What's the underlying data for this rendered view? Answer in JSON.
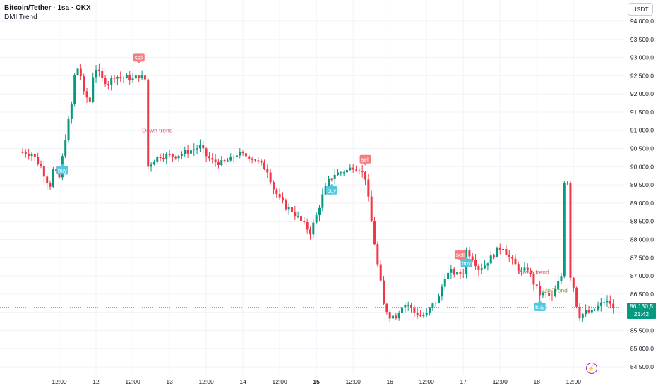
{
  "header": {
    "title": "Bitcoin/Tether · 1sa · OKX",
    "indicator": "DMI Trend"
  },
  "price_axis": {
    "currency": "USDT",
    "current_price": "86.130,5",
    "countdown": "21:42"
  },
  "colors": {
    "up": "#089981",
    "down": "#f23645",
    "buy_label": "#4ec8e0",
    "sell_label": "#f77c80",
    "down_trend_text": "#e8556a",
    "up_trend_text": "#7ba43a",
    "grid": "#f0f3fa"
  },
  "icons": {
    "replay": "lightning-icon"
  },
  "chart_data": {
    "type": "candlestick",
    "title": "Bitcoin/Tether · 1sa · OKX",
    "xlabel": "",
    "ylabel": "",
    "ylim": [
      84250,
      94400
    ],
    "y_ticks": [
      84500,
      85000,
      85500,
      86000,
      86500,
      87000,
      87500,
      88000,
      88500,
      89000,
      89500,
      90000,
      90500,
      91000,
      91500,
      92000,
      92500,
      93000,
      93500,
      94000
    ],
    "y_tick_labels": [
      "84.500,0",
      "85.000,0",
      "85.500,0",
      "86.000,0",
      "86.500,0",
      "87.000,0",
      "87.500,0",
      "88.000,0",
      "88.500,0",
      "89.000,0",
      "89.500,0",
      "90.000,0",
      "90.500,0",
      "91.000,0",
      "91.500,0",
      "92.000,0",
      "92.500,0",
      "93.000,0",
      "93.500,0",
      "94.000,0"
    ],
    "x_ticks": [
      {
        "label": "12:00",
        "hour": 12,
        "bold": false
      },
      {
        "label": "12",
        "hour": 24,
        "bold": false
      },
      {
        "label": "12:00",
        "hour": 36,
        "bold": false
      },
      {
        "label": "13",
        "hour": 48,
        "bold": false
      },
      {
        "label": "12:00",
        "hour": 60,
        "bold": false
      },
      {
        "label": "14",
        "hour": 72,
        "bold": false
      },
      {
        "label": "12:00",
        "hour": 84,
        "bold": false
      },
      {
        "label": "15",
        "hour": 96,
        "bold": true
      },
      {
        "label": "12:00",
        "hour": 108,
        "bold": false
      },
      {
        "label": "16",
        "hour": 120,
        "bold": false
      },
      {
        "label": "12:00",
        "hour": 132,
        "bold": false
      },
      {
        "label": "17",
        "hour": 144,
        "bold": false
      },
      {
        "label": "12:00",
        "hour": 156,
        "bold": false
      },
      {
        "label": "18",
        "hour": 168,
        "bold": false
      },
      {
        "label": "12:00",
        "hour": 180,
        "bold": false
      }
    ],
    "current_price": 86130.5,
    "anchors": [
      [
        0,
        90400
      ],
      [
        3,
        90350
      ],
      [
        6,
        90000
      ],
      [
        8,
        89600
      ],
      [
        9,
        89500
      ],
      [
        10,
        89900
      ],
      [
        12,
        89700
      ],
      [
        14,
        90800
      ],
      [
        16,
        91700
      ],
      [
        17,
        92500
      ],
      [
        18,
        92700
      ],
      [
        19,
        92500
      ],
      [
        20,
        92000
      ],
      [
        22,
        91800
      ],
      [
        23,
        92500
      ],
      [
        24,
        92700
      ],
      [
        26,
        92400
      ],
      [
        28,
        92300
      ],
      [
        30,
        92500
      ],
      [
        32,
        92450
      ],
      [
        34,
        92450
      ],
      [
        36,
        92400
      ],
      [
        38,
        92500
      ],
      [
        39,
        92450
      ],
      [
        40,
        92400
      ],
      [
        41,
        90000
      ],
      [
        43,
        90200
      ],
      [
        45,
        90300
      ],
      [
        50,
        90300
      ],
      [
        55,
        90450
      ],
      [
        58,
        90550
      ],
      [
        60,
        90300
      ],
      [
        62,
        90150
      ],
      [
        65,
        90100
      ],
      [
        68,
        90200
      ],
      [
        70,
        90350
      ],
      [
        73,
        90300
      ],
      [
        76,
        90200
      ],
      [
        78,
        90050
      ],
      [
        80,
        89900
      ],
      [
        82,
        89400
      ],
      [
        84,
        89100
      ],
      [
        86,
        88900
      ],
      [
        88,
        88800
      ],
      [
        90,
        88600
      ],
      [
        92,
        88400
      ],
      [
        94,
        88200
      ],
      [
        96,
        88650
      ],
      [
        98,
        89200
      ],
      [
        100,
        89600
      ],
      [
        102,
        89800
      ],
      [
        104,
        89850
      ],
      [
        106,
        89900
      ],
      [
        108,
        90000
      ],
      [
        110,
        89950
      ],
      [
        112,
        89700
      ],
      [
        114,
        88500
      ],
      [
        116,
        87300
      ],
      [
        117,
        86800
      ],
      [
        118,
        86200
      ],
      [
        120,
        85900
      ],
      [
        122,
        85900
      ],
      [
        124,
        86200
      ],
      [
        126,
        86200
      ],
      [
        128,
        86000
      ],
      [
        130,
        85900
      ],
      [
        132,
        85950
      ],
      [
        134,
        86200
      ],
      [
        136,
        86400
      ],
      [
        138,
        87000
      ],
      [
        140,
        87100
      ],
      [
        142,
        87050
      ],
      [
        144,
        87100
      ],
      [
        145,
        87700
      ],
      [
        147,
        87500
      ],
      [
        149,
        87200
      ],
      [
        151,
        87300
      ],
      [
        153,
        87500
      ],
      [
        155,
        87700
      ],
      [
        157,
        87800
      ],
      [
        159,
        87500
      ],
      [
        161,
        87300
      ],
      [
        163,
        87100
      ],
      [
        165,
        87200
      ],
      [
        167,
        86800
      ],
      [
        169,
        86500
      ],
      [
        171,
        86500
      ],
      [
        173,
        86400
      ],
      [
        175,
        86800
      ],
      [
        176,
        87000
      ],
      [
        177,
        89600
      ],
      [
        178,
        89600
      ],
      [
        179,
        87000
      ],
      [
        180,
        86700
      ],
      [
        181,
        86200
      ],
      [
        182,
        85900
      ],
      [
        184,
        86000
      ],
      [
        186,
        86000
      ],
      [
        188,
        86150
      ],
      [
        190,
        86300
      ],
      [
        192,
        86250
      ],
      [
        193,
        86130
      ]
    ],
    "signals": [
      {
        "type": "buy",
        "label": "buy",
        "hour": 13
      },
      {
        "type": "sell",
        "label": "sell",
        "hour": 38
      },
      {
        "type": "buy",
        "label": "buy",
        "hour": 101
      },
      {
        "type": "sell",
        "label": "sell",
        "hour": 112
      },
      {
        "type": "sell",
        "label": "sell",
        "hour": 143
      },
      {
        "type": "buy",
        "label": "buy",
        "hour": 145
      },
      {
        "type": "buy",
        "label": "buy",
        "hour": 169
      }
    ],
    "annotations": [
      {
        "text": "Down trend",
        "hour": 39,
        "price": 90950,
        "trend": "down"
      },
      {
        "text": "Down trend",
        "hour": 162,
        "price": 87050,
        "trend": "down"
      },
      {
        "text": "Up Trend",
        "hour": 170,
        "price": 86550,
        "trend": "up"
      }
    ]
  }
}
